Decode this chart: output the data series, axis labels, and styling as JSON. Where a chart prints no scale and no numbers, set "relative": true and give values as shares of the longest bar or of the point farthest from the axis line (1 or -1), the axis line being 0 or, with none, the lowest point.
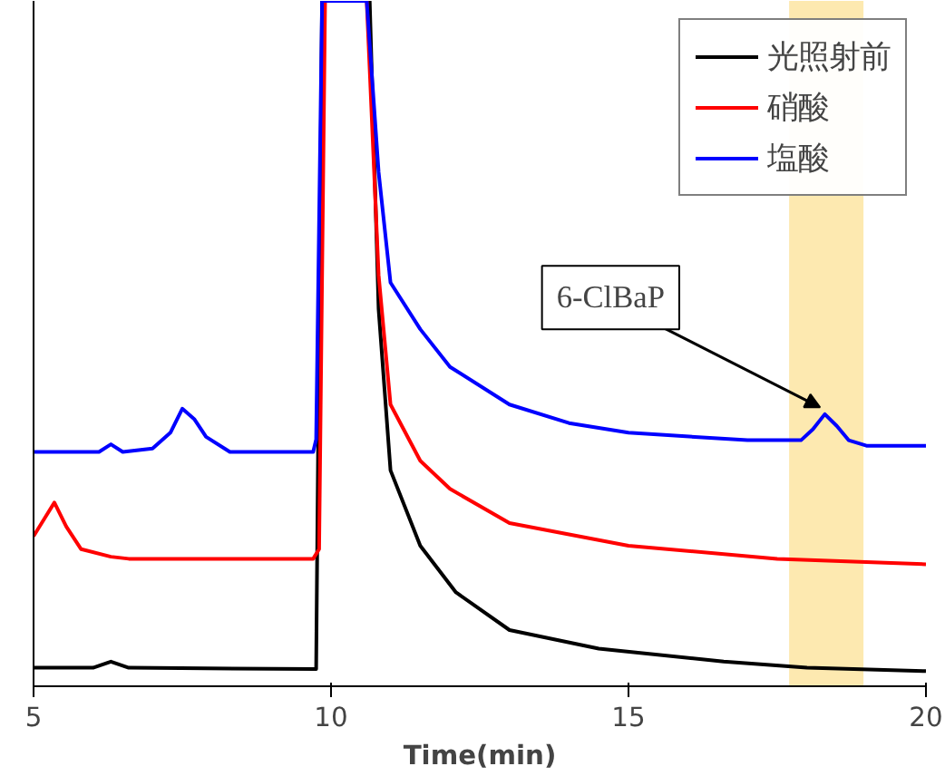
{
  "chart_data": {
    "type": "line",
    "relative": true,
    "xlabel": "Time(min)",
    "xlim": [
      5,
      20
    ],
    "xticks": [
      5,
      10,
      15,
      20
    ],
    "legend": "top right",
    "grid": false,
    "marker": "none",
    "line_style": "solid",
    "series": [
      {
        "name": "光照射前",
        "color": "#000000",
        "x": [
          5,
          6.0,
          6.3,
          6.6,
          9.75,
          9.85,
          10.65,
          10.8,
          11.0,
          11.5,
          12.1,
          13,
          14.5,
          16.6,
          18,
          20
        ],
        "values": [
          0.027,
          0.027,
          0.036,
          0.027,
          0.025,
          1,
          1,
          0.55,
          0.315,
          0.205,
          0.137,
          0.082,
          0.055,
          0.036,
          0.027,
          0.022
        ]
      },
      {
        "name": "硝酸",
        "color": "#ff0000",
        "x": [
          5,
          5.2,
          5.35,
          5.55,
          5.8,
          6.3,
          6.6,
          9.7,
          9.8,
          9.9,
          10.6,
          10.8,
          11,
          11.5,
          12,
          13,
          15,
          17.5,
          20
        ],
        "values": [
          0.219,
          0.247,
          0.268,
          0.233,
          0.2,
          0.189,
          0.186,
          0.186,
          0.2,
          1,
          1,
          0.6,
          0.411,
          0.329,
          0.288,
          0.238,
          0.205,
          0.186,
          0.178
        ]
      },
      {
        "name": "塩酸",
        "color": "#0000ff",
        "x": [
          5,
          6.1,
          6.3,
          6.5,
          7,
          7.3,
          7.5,
          7.7,
          7.9,
          8.3,
          9.7,
          9.75,
          9.85,
          10.6,
          10.8,
          11,
          11.5,
          12,
          13,
          14,
          15,
          17,
          17.9,
          18.1,
          18.3,
          18.5,
          18.7,
          19,
          20
        ],
        "values": [
          0.342,
          0.342,
          0.353,
          0.342,
          0.347,
          0.37,
          0.405,
          0.39,
          0.364,
          0.342,
          0.342,
          0.36,
          1,
          1,
          0.75,
          0.589,
          0.521,
          0.466,
          0.411,
          0.384,
          0.37,
          0.359,
          0.359,
          0.375,
          0.397,
          0.38,
          0.359,
          0.351,
          0.351
        ]
      }
    ],
    "bands": [
      {
        "axis": "x",
        "from": 17.7,
        "to": 18.95,
        "color": "#fde9b0"
      }
    ],
    "annotations": [
      {
        "text": "6-ClBaP",
        "x": 18.3,
        "y": 0.397
      }
    ]
  }
}
